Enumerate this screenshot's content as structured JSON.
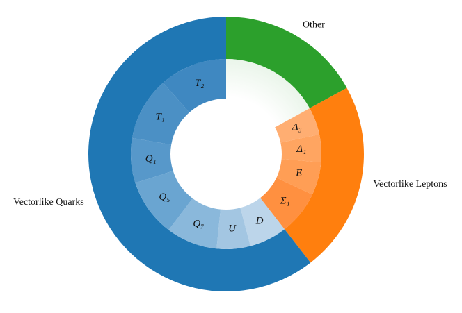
{
  "chart_data": {
    "type": "sunburst",
    "series": [
      {
        "name": "Other",
        "value": 17,
        "color": "#2ca02c",
        "children": []
      },
      {
        "name": "Vectorlike Leptons",
        "value": 22.5,
        "color": "#ff7f0e",
        "children": [
          {
            "name": "Δ₃",
            "value": 4.7,
            "color": "#ffae72"
          },
          {
            "name": "Δ₁",
            "value": 4.7,
            "color": "#ffa561"
          },
          {
            "name": "E",
            "value": 5.6,
            "color": "#ff9e55"
          },
          {
            "name": "Σ₁",
            "value": 7.5,
            "color": "#ff9040"
          }
        ]
      },
      {
        "name": "Vectorlike Quarks",
        "value": 60.5,
        "color": "#1f77b4",
        "children": [
          {
            "name": "D",
            "value": 6.4,
            "color": "#bcd5ea"
          },
          {
            "name": "U",
            "value": 5.7,
            "color": "#a3c6e2"
          },
          {
            "name": "Q₇",
            "value": 8.7,
            "color": "#8ab8db"
          },
          {
            "name": "Q₅",
            "value": 9.8,
            "color": "#6aa5d1"
          },
          {
            "name": "Q₁",
            "value": 7.6,
            "color": "#5798ca"
          },
          {
            "name": "T₁",
            "value": 10.8,
            "color": "#4b90c5"
          },
          {
            "name": "T₂",
            "value": 11.5,
            "color": "#3f88c1"
          }
        ]
      }
    ]
  }
}
